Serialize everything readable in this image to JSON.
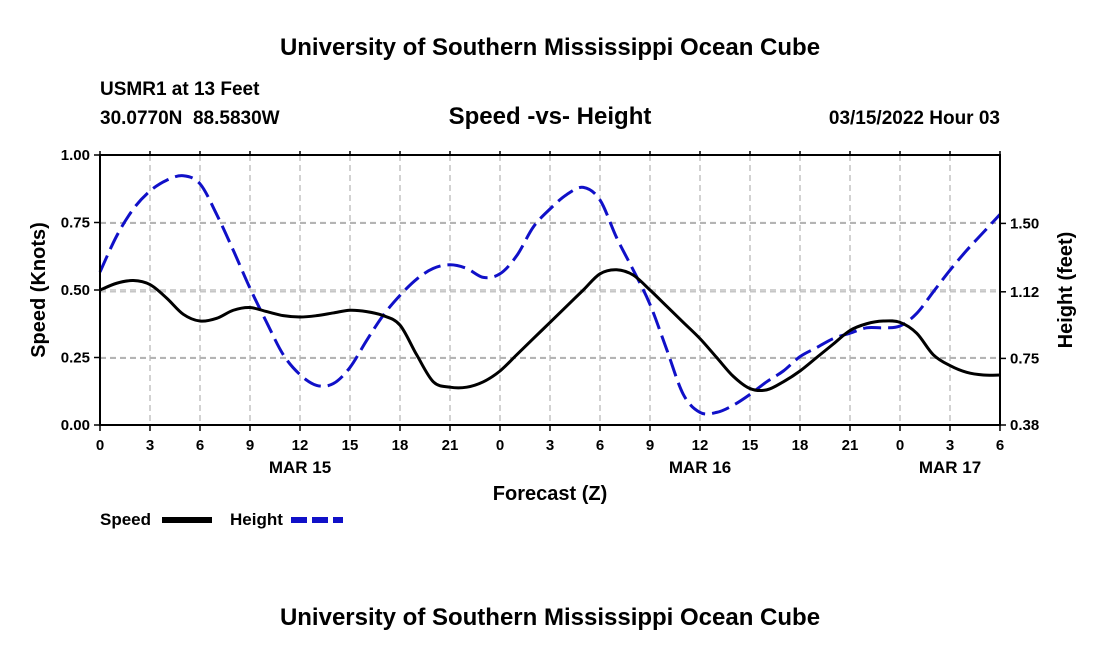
{
  "header": {
    "title": "University of Southern Mississippi Ocean Cube",
    "station": "USMR1 at 13 Feet",
    "coords": "30.0770N  88.5830W",
    "chart_title": "Speed -vs- Height",
    "timestamp": "03/15/2022 Hour 03"
  },
  "footer": {
    "title": "University of Southern Mississippi Ocean Cube"
  },
  "colors": {
    "speed": "#000000",
    "height": "#1010c8",
    "grid": "#b4b4b4"
  },
  "chart_data": {
    "type": "line",
    "title": "Speed -vs- Height",
    "xlabel": "Forecast (Z)",
    "ylabel": "Speed (Knots)",
    "y2label": "Height (feet)",
    "xlim": [
      0,
      54
    ],
    "ylim": [
      0,
      1
    ],
    "y2lim": [
      0.38,
      1.88
    ],
    "x_ticks": [
      0,
      3,
      6,
      9,
      12,
      15,
      18,
      21,
      24,
      27,
      30,
      33,
      36,
      39,
      42,
      45,
      48,
      51,
      54
    ],
    "x_tick_labels": [
      "0",
      "3",
      "6",
      "9",
      "12",
      "15",
      "18",
      "21",
      "0",
      "3",
      "6",
      "9",
      "12",
      "15",
      "18",
      "21",
      "0",
      "3",
      "6"
    ],
    "date_labels": [
      {
        "text": "MAR 15",
        "x": 12
      },
      {
        "text": "MAR 16",
        "x": 36
      },
      {
        "text": "MAR 17",
        "x": 51
      }
    ],
    "y_ticks": [
      0,
      0.25,
      0.5,
      0.75,
      1.0
    ],
    "y_tick_labels": [
      "0.00",
      "0.25",
      "0.50",
      "0.75",
      "1.00"
    ],
    "y2_ticks": [
      0.38,
      0.75,
      1.12,
      1.5
    ],
    "y2_tick_labels": [
      "0.38",
      "0.75",
      "1.12",
      "1.50"
    ],
    "grid": true,
    "legend": {
      "position": "bottom-left",
      "speed_label": "Speed",
      "height_label": "Height"
    },
    "series": [
      {
        "name": "Speed",
        "axis": "left",
        "style": "solid",
        "x": [
          0,
          1,
          2,
          3,
          4,
          5,
          6,
          7,
          8,
          9,
          10,
          11,
          12,
          13,
          14,
          15,
          16,
          17,
          18,
          19,
          20,
          21,
          22,
          23,
          24,
          25,
          26,
          27,
          28,
          29,
          30,
          31,
          32,
          33,
          34,
          35,
          36,
          37,
          38,
          39,
          40,
          41,
          42,
          43,
          44,
          45,
          46,
          47,
          48,
          49,
          50,
          51,
          52,
          53,
          54
        ],
        "values": [
          0.5,
          0.525,
          0.535,
          0.52,
          0.47,
          0.41,
          0.385,
          0.395,
          0.425,
          0.435,
          0.42,
          0.405,
          0.4,
          0.405,
          0.415,
          0.425,
          0.42,
          0.405,
          0.37,
          0.26,
          0.16,
          0.14,
          0.14,
          0.16,
          0.2,
          0.26,
          0.32,
          0.38,
          0.44,
          0.5,
          0.56,
          0.575,
          0.555,
          0.5,
          0.44,
          0.38,
          0.32,
          0.25,
          0.18,
          0.135,
          0.13,
          0.16,
          0.2,
          0.25,
          0.3,
          0.35,
          0.375,
          0.385,
          0.38,
          0.34,
          0.26,
          0.22,
          0.195,
          0.185,
          0.185
        ]
      },
      {
        "name": "Height",
        "axis": "right",
        "style": "dashed",
        "x": [
          0,
          1,
          2,
          3,
          4,
          5,
          6,
          7,
          8,
          9,
          10,
          11,
          12,
          13,
          14,
          15,
          16,
          17,
          18,
          19,
          20,
          21,
          22,
          23,
          24,
          25,
          26,
          27,
          28,
          29,
          30,
          31,
          32,
          33,
          34,
          35,
          36,
          37,
          38,
          39,
          40,
          41,
          42,
          43,
          44,
          45,
          46,
          47,
          48,
          49,
          50,
          51,
          52,
          53,
          54
        ],
        "values": [
          1.23,
          1.43,
          1.58,
          1.68,
          1.74,
          1.765,
          1.72,
          1.55,
          1.35,
          1.14,
          0.95,
          0.77,
          0.66,
          0.6,
          0.61,
          0.7,
          0.85,
          0.99,
          1.1,
          1.19,
          1.25,
          1.27,
          1.25,
          1.2,
          1.22,
          1.32,
          1.48,
          1.58,
          1.66,
          1.7,
          1.63,
          1.42,
          1.24,
          1.05,
          0.8,
          0.55,
          0.45,
          0.45,
          0.49,
          0.55,
          0.62,
          0.68,
          0.76,
          0.81,
          0.86,
          0.89,
          0.92,
          0.92,
          0.93,
          1.0,
          1.12,
          1.24,
          1.35,
          1.45,
          1.55
        ]
      }
    ]
  }
}
